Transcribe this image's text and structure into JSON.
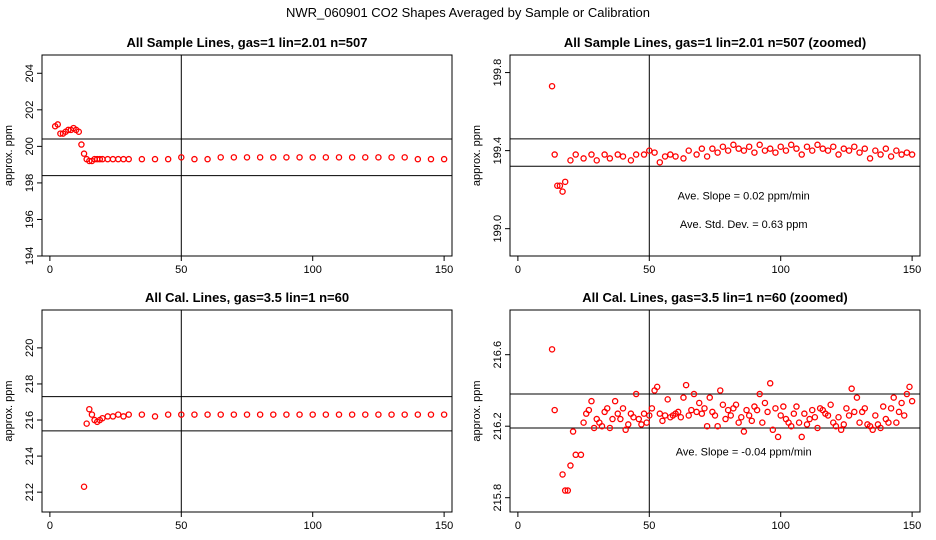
{
  "figure_title": "NWR_060901  CO2 Shapes Averaged by Sample or Calibration",
  "marker_color": "#ff0000",
  "chart_data": [
    {
      "type": "scatter",
      "title": "All Sample Lines, gas=1 lin=2.01 n=507",
      "xlabel": "",
      "ylabel": "approx. ppm",
      "xlim": [
        -3,
        153
      ],
      "ylim": [
        194,
        205
      ],
      "xticks": [
        0,
        50,
        100,
        150
      ],
      "yticks": [
        194,
        196,
        198,
        200,
        202,
        204
      ],
      "hlines": [
        198.4,
        200.4
      ],
      "vline": 50,
      "annotations": [],
      "x": [
        2,
        3,
        4,
        5,
        6,
        7,
        8,
        9,
        10,
        11,
        12,
        13,
        14,
        15,
        16,
        17,
        18,
        19,
        20,
        22,
        24,
        26,
        28,
        30,
        35,
        40,
        45,
        50,
        55,
        60,
        65,
        70,
        75,
        80,
        85,
        90,
        95,
        100,
        105,
        110,
        115,
        120,
        125,
        130,
        135,
        140,
        145,
        150
      ],
      "y": [
        201.1,
        201.2,
        200.7,
        200.7,
        200.8,
        200.9,
        200.9,
        201.0,
        200.9,
        200.8,
        200.1,
        199.6,
        199.3,
        199.2,
        199.2,
        199.3,
        199.3,
        199.3,
        199.3,
        199.3,
        199.3,
        199.3,
        199.3,
        199.3,
        199.3,
        199.3,
        199.3,
        199.4,
        199.3,
        199.3,
        199.4,
        199.4,
        199.4,
        199.4,
        199.4,
        199.4,
        199.4,
        199.4,
        199.4,
        199.4,
        199.4,
        199.4,
        199.4,
        199.4,
        199.4,
        199.3,
        199.3,
        199.3
      ]
    },
    {
      "type": "scatter",
      "title": "All Sample Lines, gas=1 lin=2.01 n=507 (zoomed)",
      "xlabel": "",
      "ylabel": "approx. ppm",
      "xlim": [
        -3,
        153
      ],
      "ylim": [
        198.86,
        199.89
      ],
      "xticks": [
        0,
        50,
        100,
        150
      ],
      "yticks": [
        199.0,
        199.4,
        199.8
      ],
      "ytick_labels": [
        "199.0",
        "199.4",
        "199.8"
      ],
      "hlines": [
        199.32,
        199.46
      ],
      "vline": 50,
      "annotations": [
        "Ave. Slope =  0.02  ppm/min",
        "Ave. Std. Dev. =  0.63  ppm"
      ],
      "x": [
        13,
        14,
        15,
        16,
        17,
        18,
        20,
        22,
        25,
        28,
        30,
        33,
        35,
        38,
        40,
        43,
        45,
        48,
        50,
        52,
        54,
        56,
        58,
        60,
        63,
        65,
        68,
        70,
        72,
        74,
        76,
        78,
        80,
        82,
        84,
        86,
        88,
        90,
        92,
        94,
        96,
        98,
        100,
        102,
        104,
        106,
        108,
        110,
        112,
        114,
        116,
        118,
        120,
        122,
        124,
        126,
        128,
        130,
        132,
        134,
        136,
        138,
        140,
        142,
        144,
        146,
        148,
        150
      ],
      "y": [
        199.73,
        199.38,
        199.22,
        199.22,
        199.19,
        199.24,
        199.35,
        199.38,
        199.36,
        199.38,
        199.35,
        199.38,
        199.36,
        199.38,
        199.37,
        199.35,
        199.38,
        199.38,
        199.4,
        199.39,
        199.34,
        199.37,
        199.38,
        199.37,
        199.36,
        199.4,
        199.38,
        199.41,
        199.37,
        199.41,
        199.39,
        199.42,
        199.4,
        199.43,
        199.41,
        199.4,
        199.42,
        199.39,
        199.43,
        199.4,
        199.41,
        199.39,
        199.42,
        199.4,
        199.43,
        199.41,
        199.38,
        199.42,
        199.4,
        199.43,
        199.41,
        199.4,
        199.42,
        199.38,
        199.41,
        199.4,
        199.42,
        199.39,
        199.41,
        199.36,
        199.4,
        199.38,
        199.41,
        199.37,
        199.4,
        199.38,
        199.39,
        199.38
      ]
    },
    {
      "type": "scatter",
      "title": "All Cal. Lines, gas=3.5 lin=1 n=60",
      "xlabel": "",
      "ylabel": "approx. ppm",
      "xlim": [
        -3,
        153
      ],
      "ylim": [
        210.9,
        222.1
      ],
      "xticks": [
        0,
        50,
        100,
        150
      ],
      "yticks": [
        212,
        214,
        216,
        218,
        220
      ],
      "hlines": [
        215.4,
        217.3
      ],
      "vline": 50,
      "annotations": [],
      "x": [
        13,
        14,
        15,
        16,
        17,
        18,
        19,
        20,
        22,
        24,
        26,
        28,
        30,
        35,
        40,
        45,
        50,
        55,
        60,
        65,
        70,
        75,
        80,
        85,
        90,
        95,
        100,
        105,
        110,
        115,
        120,
        125,
        130,
        135,
        140,
        145,
        150
      ],
      "y": [
        212.3,
        215.8,
        216.6,
        216.3,
        216.0,
        215.9,
        216.0,
        216.1,
        216.2,
        216.2,
        216.3,
        216.2,
        216.3,
        216.3,
        216.2,
        216.3,
        216.3,
        216.3,
        216.3,
        216.3,
        216.3,
        216.3,
        216.3,
        216.3,
        216.3,
        216.3,
        216.3,
        216.3,
        216.3,
        216.3,
        216.3,
        216.3,
        216.3,
        216.3,
        216.3,
        216.3,
        216.3
      ]
    },
    {
      "type": "scatter",
      "title": "All Cal. Lines, gas=3.5 lin=1 n=60 (zoomed)",
      "xlabel": "",
      "ylabel": "approx. ppm",
      "xlim": [
        -3,
        153
      ],
      "ylim": [
        215.72,
        216.85
      ],
      "xticks": [
        0,
        50,
        100,
        150
      ],
      "yticks": [
        215.8,
        216.2,
        216.6
      ],
      "ytick_labels": [
        "215.8",
        "216.2",
        "216.6"
      ],
      "hlines": [
        216.19,
        216.38
      ],
      "vline": 50,
      "annotations": [
        "Ave. Slope =  -0.04  ppm/min"
      ],
      "x": [
        13,
        14,
        17,
        18,
        19,
        20,
        21,
        22,
        24,
        25,
        26,
        27,
        28,
        29,
        30,
        31,
        32,
        33,
        34,
        35,
        36,
        37,
        38,
        39,
        40,
        41,
        42,
        43,
        44,
        45,
        46,
        47,
        48,
        49,
        50,
        51,
        52,
        53,
        54,
        55,
        56,
        57,
        58,
        59,
        60,
        61,
        62,
        63,
        64,
        65,
        66,
        67,
        68,
        69,
        70,
        71,
        72,
        73,
        74,
        75,
        76,
        77,
        78,
        79,
        80,
        81,
        82,
        83,
        84,
        85,
        86,
        87,
        88,
        89,
        90,
        91,
        92,
        93,
        94,
        95,
        96,
        97,
        98,
        99,
        100,
        101,
        102,
        103,
        104,
        105,
        106,
        107,
        108,
        109,
        110,
        111,
        112,
        113,
        114,
        115,
        116,
        117,
        118,
        119,
        120,
        121,
        122,
        123,
        124,
        125,
        126,
        127,
        128,
        129,
        130,
        131,
        132,
        133,
        134,
        135,
        136,
        137,
        138,
        139,
        140,
        141,
        142,
        143,
        144,
        145,
        146,
        147,
        148,
        149,
        150
      ],
      "y": [
        216.63,
        216.29,
        215.93,
        215.84,
        215.84,
        215.98,
        216.17,
        216.04,
        216.04,
        216.22,
        216.27,
        216.29,
        216.34,
        216.19,
        216.24,
        216.22,
        216.2,
        216.28,
        216.3,
        216.19,
        216.24,
        216.34,
        216.27,
        216.24,
        216.3,
        216.18,
        216.21,
        216.27,
        216.25,
        216.38,
        216.24,
        216.21,
        216.27,
        216.22,
        216.26,
        216.3,
        216.4,
        216.42,
        216.27,
        216.23,
        216.26,
        216.35,
        216.25,
        216.26,
        216.27,
        216.28,
        216.25,
        216.36,
        216.43,
        216.26,
        216.29,
        216.38,
        216.28,
        216.33,
        216.27,
        216.3,
        216.2,
        216.36,
        216.28,
        216.26,
        216.2,
        216.4,
        216.32,
        216.24,
        216.29,
        216.26,
        216.3,
        216.32,
        216.22,
        216.25,
        216.17,
        216.29,
        216.26,
        216.23,
        216.31,
        216.29,
        216.38,
        216.22,
        216.33,
        216.28,
        216.44,
        216.18,
        216.3,
        216.14,
        216.26,
        216.31,
        216.24,
        216.22,
        216.2,
        216.27,
        216.31,
        216.22,
        216.14,
        216.27,
        216.21,
        216.24,
        216.29,
        216.25,
        216.19,
        216.3,
        216.29,
        216.27,
        216.26,
        216.32,
        216.22,
        216.2,
        216.25,
        216.18,
        216.21,
        216.3,
        216.26,
        216.41,
        216.28,
        216.36,
        216.22,
        216.28,
        216.3,
        216.21,
        216.2,
        216.18,
        216.26,
        216.21,
        216.19,
        216.31,
        216.24,
        216.22,
        216.3,
        216.36,
        216.22,
        216.28,
        216.33,
        216.26,
        216.38,
        216.42,
        216.34
      ]
    }
  ]
}
